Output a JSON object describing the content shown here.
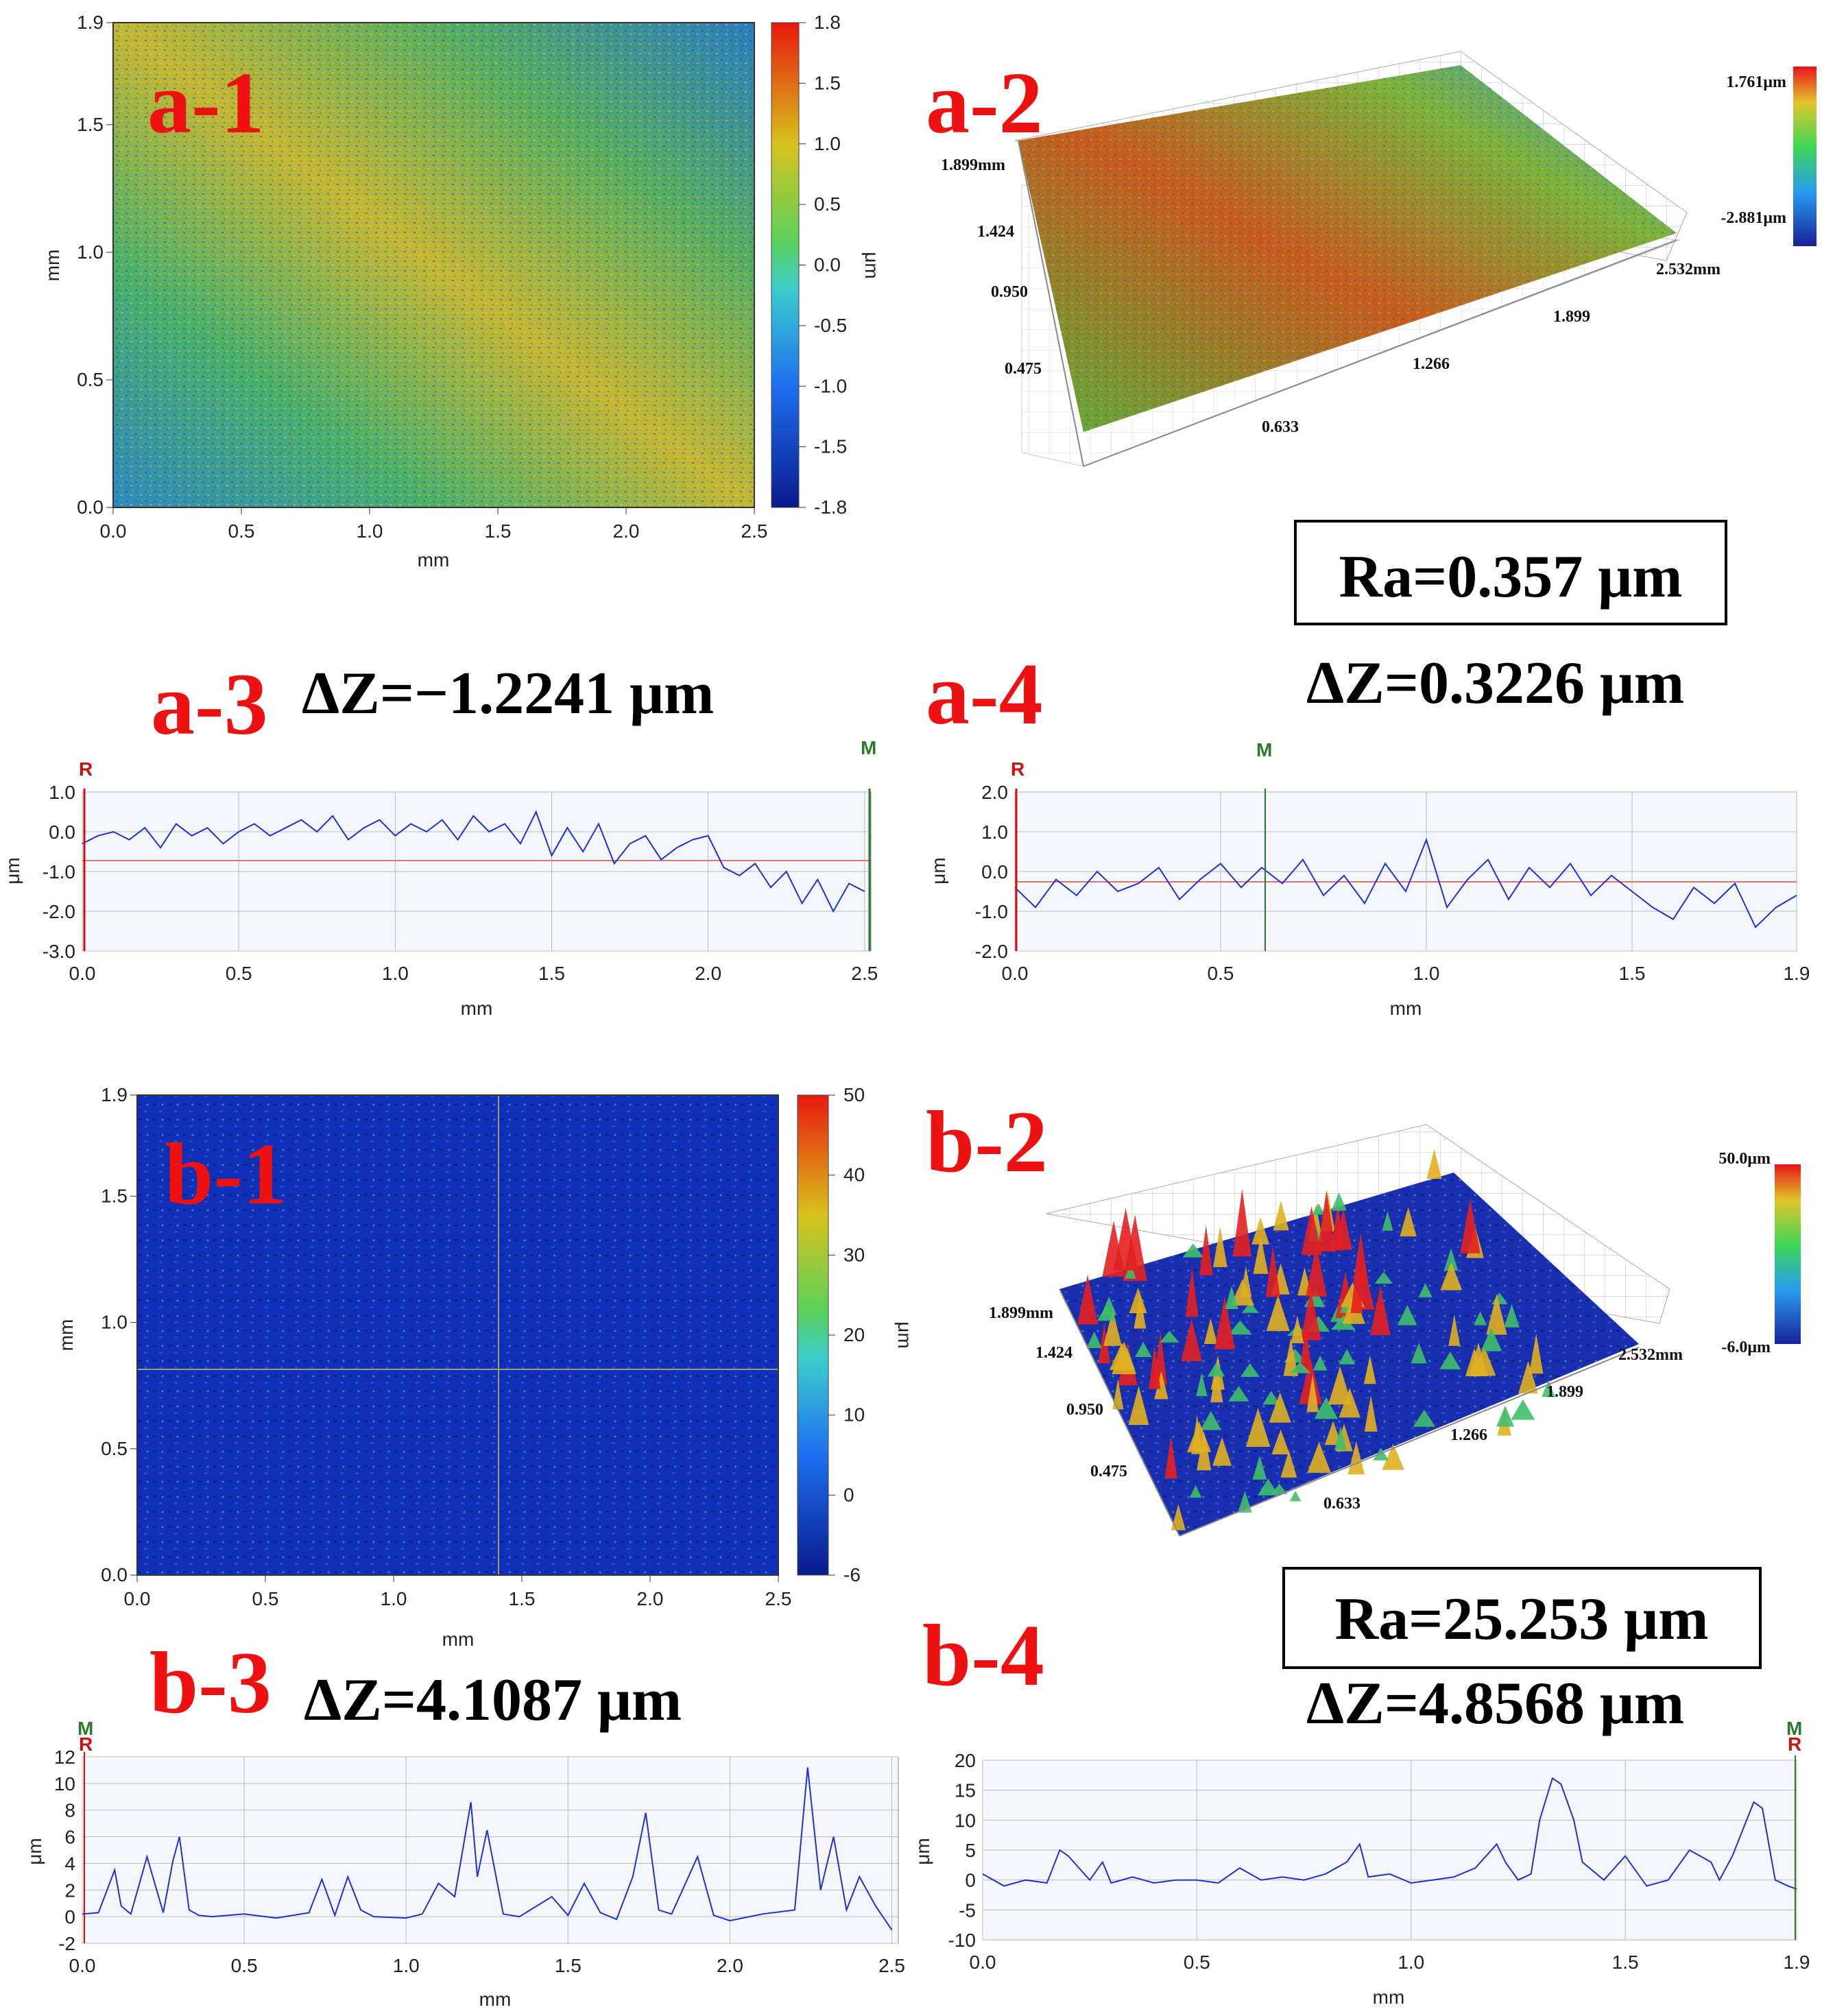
{
  "figure": {
    "labels": {
      "a1": "a-1",
      "a2": "a-2",
      "a3": "a-3",
      "a4": "a-4",
      "b1": "b-1",
      "b2": "b-2",
      "b3": "b-3",
      "b4": "b-4"
    },
    "annotations": {
      "a_ra": "Ra=0.357 μm",
      "a3_dz": "ΔZ=−1.2241 μm",
      "a4_dz": "ΔZ=0.3226 μm",
      "b_ra": "Ra=25.253 μm",
      "b3_dz": "ΔZ=4.1087 μm",
      "b4_dz": "ΔZ=4.8568 μm"
    }
  },
  "maps": {
    "a1": {
      "xlabel": "mm",
      "ylabel": "mm",
      "unit": "μm",
      "x_ticks": [
        "0.0",
        "0.5",
        "1.0",
        "1.5",
        "2.0",
        "2.5"
      ],
      "y_ticks": [
        "0.0",
        "0.5",
        "1.0",
        "1.5",
        "1.9"
      ],
      "cbar_ticks": [
        "1.8",
        "1.5",
        "1.0",
        "0.5",
        "0.0",
        "-0.5",
        "-1.0",
        "-1.5",
        "-1.8"
      ]
    },
    "b1": {
      "xlabel": "mm",
      "ylabel": "mm",
      "unit": "μm",
      "x_ticks": [
        "0.0",
        "0.5",
        "1.0",
        "1.5",
        "2.0",
        "2.5"
      ],
      "y_ticks": [
        "0.0",
        "0.5",
        "1.0",
        "1.5",
        "1.9"
      ],
      "cbar_ticks": [
        "50",
        "40",
        "30",
        "20",
        "10",
        "0",
        "-6"
      ]
    }
  },
  "surfaces": {
    "a2": {
      "y_edge": "1.899mm",
      "y_ticks": [
        "1.424",
        "0.950",
        "0.475"
      ],
      "x_ticks": [
        "0.633",
        "1.266",
        "1.899"
      ],
      "x_edge": "2.532mm",
      "cbar_max": "1.761μm",
      "cbar_min": "-2.881μm"
    },
    "b2": {
      "y_edge": "1.899mm",
      "y_ticks": [
        "1.424",
        "0.950",
        "0.475"
      ],
      "x_ticks": [
        "0.633",
        "1.266",
        "1.899"
      ],
      "x_edge": "2.532mm",
      "cbar_max": "50.0μm",
      "cbar_min": "-6.0μm"
    }
  },
  "chart_data": [
    {
      "id": "a3",
      "type": "line",
      "title": "",
      "xlabel": "mm",
      "ylabel": "μm",
      "xlim": [
        0,
        2.52
      ],
      "ylim": [
        -3.0,
        1.0
      ],
      "x_ticks": [
        "0.0",
        "0.5",
        "1.0",
        "1.5",
        "2.0",
        "2.5"
      ],
      "y_ticks": [
        "1.0",
        "0.0",
        "-1.0",
        "-2.0",
        "-3.0"
      ],
      "markers": {
        "R": "R",
        "M": "M"
      },
      "series": [
        {
          "name": "profile",
          "x": [
            0,
            0.05,
            0.1,
            0.15,
            0.2,
            0.25,
            0.3,
            0.35,
            0.4,
            0.45,
            0.5,
            0.55,
            0.6,
            0.65,
            0.7,
            0.75,
            0.8,
            0.85,
            0.9,
            0.95,
            1.0,
            1.05,
            1.1,
            1.15,
            1.2,
            1.25,
            1.3,
            1.35,
            1.4,
            1.45,
            1.5,
            1.55,
            1.6,
            1.65,
            1.7,
            1.75,
            1.8,
            1.85,
            1.9,
            1.95,
            2.0,
            2.05,
            2.1,
            2.15,
            2.2,
            2.25,
            2.3,
            2.35,
            2.4,
            2.45,
            2.5
          ],
          "values": [
            -0.3,
            -0.1,
            0.0,
            -0.2,
            0.1,
            -0.4,
            0.2,
            -0.1,
            0.1,
            -0.3,
            0.0,
            0.2,
            -0.1,
            0.1,
            0.3,
            0.0,
            0.4,
            -0.2,
            0.1,
            0.3,
            -0.1,
            0.2,
            0.0,
            0.3,
            -0.2,
            0.4,
            0.0,
            0.2,
            -0.3,
            0.5,
            -0.6,
            0.1,
            -0.5,
            0.2,
            -0.8,
            -0.3,
            -0.1,
            -0.7,
            -0.4,
            -0.2,
            -0.1,
            -0.9,
            -1.1,
            -0.8,
            -1.4,
            -1.0,
            -1.8,
            -1.2,
            -2.0,
            -1.3,
            -1.5
          ]
        }
      ]
    },
    {
      "id": "a4",
      "type": "line",
      "title": "",
      "xlabel": "mm",
      "ylabel": "μm",
      "xlim": [
        0,
        1.9
      ],
      "ylim": [
        -2.0,
        2.0
      ],
      "x_ticks": [
        "0.0",
        "0.5",
        "1.0",
        "1.5",
        "1.9"
      ],
      "y_ticks": [
        "2.0",
        "1.0",
        "0.0",
        "-1.0",
        "-2.0"
      ],
      "markers": {
        "R": "R",
        "M": "M"
      },
      "series": [
        {
          "name": "profile",
          "x": [
            0,
            0.05,
            0.1,
            0.15,
            0.2,
            0.25,
            0.3,
            0.35,
            0.4,
            0.45,
            0.5,
            0.55,
            0.6,
            0.65,
            0.7,
            0.75,
            0.8,
            0.85,
            0.9,
            0.95,
            1.0,
            1.05,
            1.1,
            1.15,
            1.2,
            1.25,
            1.3,
            1.35,
            1.4,
            1.45,
            1.5,
            1.55,
            1.6,
            1.65,
            1.7,
            1.75,
            1.8,
            1.85,
            1.9
          ],
          "values": [
            -0.4,
            -0.9,
            -0.2,
            -0.6,
            0.0,
            -0.5,
            -0.3,
            0.1,
            -0.7,
            -0.2,
            0.2,
            -0.4,
            0.1,
            -0.3,
            0.3,
            -0.6,
            -0.1,
            -0.8,
            0.2,
            -0.5,
            0.8,
            -0.9,
            -0.2,
            0.3,
            -0.7,
            0.1,
            -0.4,
            0.2,
            -0.6,
            -0.1,
            -0.5,
            -0.9,
            -1.2,
            -0.4,
            -0.8,
            -0.3,
            -1.4,
            -0.9,
            -0.6
          ]
        }
      ]
    },
    {
      "id": "b3",
      "type": "line",
      "title": "",
      "xlabel": "mm",
      "ylabel": "μm",
      "xlim": [
        0,
        2.52
      ],
      "ylim": [
        -2,
        12
      ],
      "x_ticks": [
        "0.0",
        "0.5",
        "1.0",
        "1.5",
        "2.0",
        "2.5"
      ],
      "y_ticks": [
        "12",
        "10",
        "8",
        "6",
        "4",
        "2",
        "0",
        "-2"
      ],
      "markers": {
        "R": "R",
        "M": "M"
      },
      "series": [
        {
          "name": "profile",
          "x": [
            0,
            0.05,
            0.1,
            0.12,
            0.15,
            0.2,
            0.25,
            0.28,
            0.3,
            0.33,
            0.36,
            0.4,
            0.5,
            0.6,
            0.7,
            0.74,
            0.78,
            0.82,
            0.86,
            0.9,
            1.0,
            1.05,
            1.1,
            1.15,
            1.2,
            1.22,
            1.25,
            1.3,
            1.35,
            1.45,
            1.5,
            1.55,
            1.6,
            1.65,
            1.7,
            1.74,
            1.78,
            1.82,
            1.9,
            1.95,
            2.0,
            2.1,
            2.2,
            2.24,
            2.28,
            2.32,
            2.36,
            2.4,
            2.45,
            2.5
          ],
          "values": [
            0.2,
            0.3,
            3.5,
            0.8,
            0.2,
            4.5,
            0.3,
            4.2,
            6.0,
            0.5,
            0.1,
            0.0,
            0.2,
            -0.1,
            0.3,
            2.8,
            0.1,
            3.0,
            0.5,
            0.0,
            -0.1,
            0.2,
            2.5,
            1.5,
            8.6,
            3.0,
            6.5,
            0.2,
            0.0,
            1.5,
            0.1,
            2.5,
            0.3,
            -0.2,
            3.0,
            7.8,
            0.5,
            0.2,
            4.5,
            0.1,
            -0.3,
            0.2,
            0.5,
            11.2,
            2.0,
            6.0,
            0.5,
            3.0,
            0.8,
            -1.0
          ]
        }
      ]
    },
    {
      "id": "b4",
      "type": "line",
      "title": "",
      "xlabel": "mm",
      "ylabel": "μm",
      "xlim": [
        0,
        1.9
      ],
      "ylim": [
        -10,
        20
      ],
      "x_ticks": [
        "0.0",
        "0.5",
        "1.0",
        "1.5",
        "1.9"
      ],
      "y_ticks": [
        "20",
        "15",
        "10",
        "5",
        "0",
        "-5",
        "-10"
      ],
      "markers": {
        "R": "R",
        "M": "M"
      },
      "series": [
        {
          "name": "profile",
          "x": [
            0,
            0.05,
            0.1,
            0.15,
            0.18,
            0.2,
            0.25,
            0.28,
            0.3,
            0.35,
            0.4,
            0.45,
            0.5,
            0.55,
            0.6,
            0.65,
            0.7,
            0.75,
            0.8,
            0.85,
            0.88,
            0.9,
            0.95,
            1.0,
            1.05,
            1.1,
            1.15,
            1.2,
            1.22,
            1.25,
            1.28,
            1.3,
            1.33,
            1.35,
            1.38,
            1.4,
            1.45,
            1.5,
            1.55,
            1.6,
            1.65,
            1.7,
            1.72,
            1.75,
            1.8,
            1.82,
            1.85,
            1.88,
            1.9
          ],
          "values": [
            1,
            -1,
            0,
            -0.5,
            5,
            4,
            0,
            3,
            -0.5,
            0.5,
            -0.5,
            0,
            0,
            -0.5,
            2,
            0,
            0.5,
            0,
            1,
            3,
            6,
            0.5,
            1,
            -0.5,
            0,
            0.5,
            2,
            6,
            3,
            0,
            1,
            10,
            17,
            16,
            10,
            3,
            0,
            4,
            -1,
            0,
            5,
            3,
            0,
            4,
            13,
            12,
            0,
            -1,
            -1.5
          ]
        }
      ]
    }
  ]
}
